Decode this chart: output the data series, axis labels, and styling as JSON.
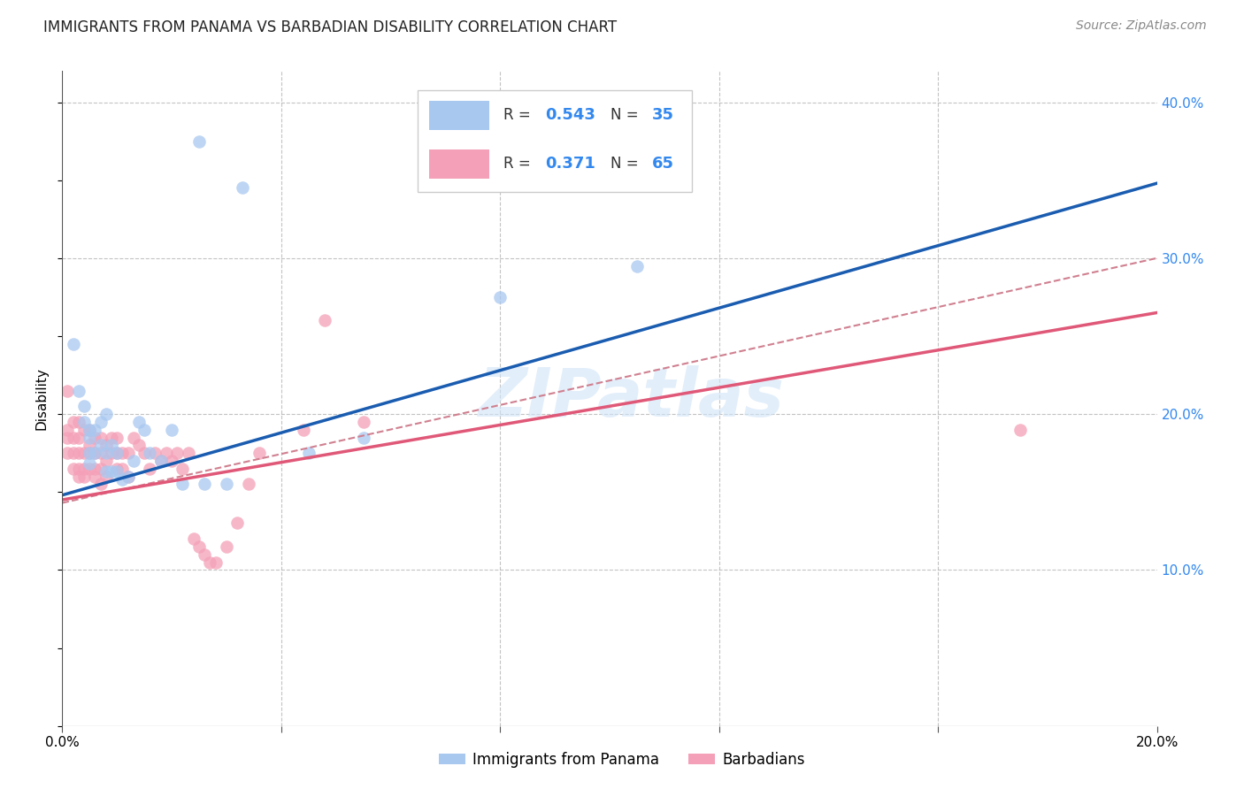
{
  "title": "IMMIGRANTS FROM PANAMA VS BARBADIAN DISABILITY CORRELATION CHART",
  "source": "Source: ZipAtlas.com",
  "ylabel": "Disability",
  "watermark": "ZIPatlas",
  "xlim": [
    0.0,
    0.2
  ],
  "ylim": [
    0.0,
    0.42
  ],
  "blue_color": "#A8C8F0",
  "pink_color": "#F4A0B8",
  "blue_line_color": "#1A5CB0",
  "pink_line_color": "#E05878",
  "dashed_line_color": "#D08090",
  "blue_line": [
    0.0,
    0.148,
    0.2,
    0.348
  ],
  "pink_line": [
    0.0,
    0.145,
    0.2,
    0.265
  ],
  "dashed_line": [
    0.0,
    0.143,
    0.2,
    0.3
  ],
  "blue_scatter": [
    [
      0.002,
      0.245
    ],
    [
      0.003,
      0.215
    ],
    [
      0.004,
      0.205
    ],
    [
      0.004,
      0.195
    ],
    [
      0.005,
      0.19
    ],
    [
      0.005,
      0.185
    ],
    [
      0.005,
      0.175
    ],
    [
      0.005,
      0.168
    ],
    [
      0.006,
      0.19
    ],
    [
      0.006,
      0.175
    ],
    [
      0.007,
      0.195
    ],
    [
      0.007,
      0.18
    ],
    [
      0.008,
      0.2
    ],
    [
      0.008,
      0.175
    ],
    [
      0.008,
      0.163
    ],
    [
      0.009,
      0.18
    ],
    [
      0.009,
      0.163
    ],
    [
      0.01,
      0.175
    ],
    [
      0.01,
      0.163
    ],
    [
      0.011,
      0.158
    ],
    [
      0.012,
      0.16
    ],
    [
      0.013,
      0.17
    ],
    [
      0.014,
      0.195
    ],
    [
      0.015,
      0.19
    ],
    [
      0.016,
      0.175
    ],
    [
      0.018,
      0.17
    ],
    [
      0.02,
      0.19
    ],
    [
      0.022,
      0.155
    ],
    [
      0.026,
      0.155
    ],
    [
      0.03,
      0.155
    ],
    [
      0.045,
      0.175
    ],
    [
      0.055,
      0.185
    ],
    [
      0.08,
      0.275
    ],
    [
      0.105,
      0.295
    ],
    [
      0.025,
      0.375
    ],
    [
      0.033,
      0.345
    ]
  ],
  "pink_scatter": [
    [
      0.001,
      0.215
    ],
    [
      0.001,
      0.19
    ],
    [
      0.001,
      0.185
    ],
    [
      0.001,
      0.175
    ],
    [
      0.002,
      0.195
    ],
    [
      0.002,
      0.185
    ],
    [
      0.002,
      0.175
    ],
    [
      0.002,
      0.165
    ],
    [
      0.003,
      0.195
    ],
    [
      0.003,
      0.185
    ],
    [
      0.003,
      0.175
    ],
    [
      0.003,
      0.165
    ],
    [
      0.003,
      0.16
    ],
    [
      0.004,
      0.19
    ],
    [
      0.004,
      0.175
    ],
    [
      0.004,
      0.165
    ],
    [
      0.004,
      0.16
    ],
    [
      0.005,
      0.19
    ],
    [
      0.005,
      0.18
    ],
    [
      0.005,
      0.175
    ],
    [
      0.005,
      0.165
    ],
    [
      0.006,
      0.185
    ],
    [
      0.006,
      0.175
    ],
    [
      0.006,
      0.165
    ],
    [
      0.006,
      0.16
    ],
    [
      0.007,
      0.185
    ],
    [
      0.007,
      0.175
    ],
    [
      0.007,
      0.165
    ],
    [
      0.007,
      0.155
    ],
    [
      0.008,
      0.18
    ],
    [
      0.008,
      0.17
    ],
    [
      0.008,
      0.16
    ],
    [
      0.009,
      0.185
    ],
    [
      0.009,
      0.175
    ],
    [
      0.01,
      0.185
    ],
    [
      0.01,
      0.175
    ],
    [
      0.01,
      0.165
    ],
    [
      0.011,
      0.175
    ],
    [
      0.011,
      0.165
    ],
    [
      0.012,
      0.175
    ],
    [
      0.012,
      0.16
    ],
    [
      0.013,
      0.185
    ],
    [
      0.014,
      0.18
    ],
    [
      0.015,
      0.175
    ],
    [
      0.016,
      0.165
    ],
    [
      0.017,
      0.175
    ],
    [
      0.018,
      0.17
    ],
    [
      0.019,
      0.175
    ],
    [
      0.02,
      0.17
    ],
    [
      0.021,
      0.175
    ],
    [
      0.022,
      0.165
    ],
    [
      0.023,
      0.175
    ],
    [
      0.024,
      0.12
    ],
    [
      0.025,
      0.115
    ],
    [
      0.026,
      0.11
    ],
    [
      0.027,
      0.105
    ],
    [
      0.028,
      0.105
    ],
    [
      0.03,
      0.115
    ],
    [
      0.032,
      0.13
    ],
    [
      0.034,
      0.155
    ],
    [
      0.036,
      0.175
    ],
    [
      0.044,
      0.19
    ],
    [
      0.048,
      0.26
    ],
    [
      0.055,
      0.195
    ],
    [
      0.175,
      0.19
    ]
  ]
}
